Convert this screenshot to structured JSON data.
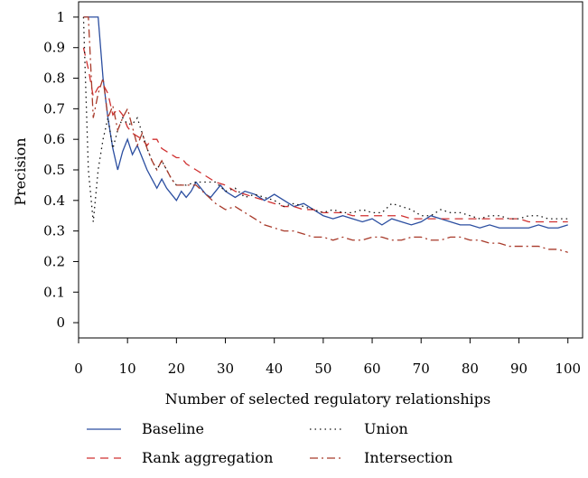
{
  "chart_data": {
    "type": "line",
    "xlabel": "Number of selected regulatory relationships",
    "ylabel": "Precision",
    "xlim": [
      0,
      103
    ],
    "ylim": [
      -0.05,
      1.05
    ],
    "xticks": [
      0,
      10,
      20,
      30,
      40,
      50,
      60,
      70,
      80,
      90,
      100
    ],
    "xtick_labels": [
      "0",
      "10",
      "20",
      "30",
      "40",
      "50",
      "60",
      "70",
      "80",
      "90",
      "100"
    ],
    "yticks": [
      0,
      0.1,
      0.2,
      0.3,
      0.4,
      0.5,
      0.6,
      0.7,
      0.8,
      0.9,
      1
    ],
    "ytick_labels": [
      "0",
      "0.1",
      "0.2",
      "0.3",
      "0.4",
      "0.5",
      "0.6",
      "0.7",
      "0.8",
      "0.9",
      "1"
    ],
    "grid": false,
    "legend_position": "bottom",
    "series": [
      {
        "name": "Baseline",
        "color": "#2b4ea0",
        "dash": "solid",
        "x": [
          1,
          2,
          3,
          4,
          5,
          6,
          7,
          8,
          9,
          10,
          11,
          12,
          13,
          14,
          15,
          16,
          17,
          18,
          19,
          20,
          21,
          22,
          23,
          24,
          25,
          26,
          27,
          28,
          29,
          30,
          32,
          34,
          36,
          38,
          40,
          42,
          44,
          46,
          48,
          50,
          52,
          54,
          56,
          58,
          60,
          62,
          64,
          66,
          68,
          70,
          72,
          74,
          76,
          78,
          80,
          82,
          84,
          86,
          88,
          90,
          92,
          94,
          96,
          98,
          100
        ],
        "y": [
          1.0,
          1.0,
          1.0,
          1.0,
          0.8,
          0.67,
          0.57,
          0.5,
          0.56,
          0.6,
          0.55,
          0.58,
          0.54,
          0.5,
          0.47,
          0.44,
          0.47,
          0.44,
          0.42,
          0.4,
          0.43,
          0.41,
          0.43,
          0.46,
          0.44,
          0.42,
          0.41,
          0.43,
          0.45,
          0.43,
          0.41,
          0.43,
          0.42,
          0.4,
          0.42,
          0.4,
          0.38,
          0.39,
          0.37,
          0.35,
          0.34,
          0.35,
          0.34,
          0.33,
          0.34,
          0.32,
          0.34,
          0.33,
          0.32,
          0.33,
          0.35,
          0.34,
          0.33,
          0.32,
          0.32,
          0.31,
          0.32,
          0.31,
          0.31,
          0.31,
          0.31,
          0.32,
          0.31,
          0.31,
          0.32
        ]
      },
      {
        "name": "Rank aggregation",
        "color": "#d03030",
        "dash": "dash",
        "x": [
          1,
          2,
          3,
          4,
          5,
          6,
          7,
          8,
          9,
          10,
          11,
          12,
          13,
          14,
          15,
          16,
          17,
          18,
          19,
          20,
          21,
          22,
          24,
          26,
          28,
          30,
          32,
          34,
          36,
          38,
          40,
          42,
          44,
          46,
          48,
          50,
          52,
          54,
          56,
          58,
          60,
          62,
          64,
          66,
          68,
          70,
          72,
          74,
          76,
          78,
          80,
          82,
          84,
          86,
          88,
          90,
          92,
          94,
          96,
          98,
          100
        ],
        "y": [
          0.9,
          0.83,
          0.74,
          0.77,
          0.78,
          0.75,
          0.68,
          0.7,
          0.68,
          0.64,
          0.62,
          0.61,
          0.6,
          0.58,
          0.6,
          0.6,
          0.57,
          0.56,
          0.55,
          0.54,
          0.54,
          0.52,
          0.5,
          0.48,
          0.46,
          0.45,
          0.43,
          0.42,
          0.41,
          0.4,
          0.39,
          0.38,
          0.38,
          0.37,
          0.37,
          0.36,
          0.36,
          0.36,
          0.35,
          0.35,
          0.35,
          0.35,
          0.35,
          0.35,
          0.34,
          0.34,
          0.34,
          0.34,
          0.34,
          0.34,
          0.34,
          0.34,
          0.34,
          0.34,
          0.34,
          0.34,
          0.33,
          0.33,
          0.33,
          0.33,
          0.33
        ]
      },
      {
        "name": "Union",
        "color": "#111111",
        "dash": "dot",
        "x": [
          1,
          2,
          3,
          4,
          5,
          6,
          7,
          8,
          9,
          10,
          11,
          12,
          13,
          14,
          15,
          16,
          17,
          18,
          19,
          20,
          22,
          24,
          26,
          28,
          30,
          32,
          34,
          36,
          38,
          40,
          42,
          44,
          46,
          48,
          50,
          52,
          54,
          56,
          58,
          60,
          62,
          64,
          66,
          68,
          70,
          72,
          74,
          76,
          78,
          80,
          82,
          84,
          86,
          88,
          90,
          92,
          94,
          96,
          98,
          100
        ],
        "y": [
          1.0,
          0.5,
          0.33,
          0.5,
          0.6,
          0.67,
          0.57,
          0.63,
          0.67,
          0.65,
          0.65,
          0.67,
          0.62,
          0.57,
          0.53,
          0.5,
          0.53,
          0.5,
          0.47,
          0.45,
          0.45,
          0.46,
          0.46,
          0.46,
          0.43,
          0.44,
          0.41,
          0.42,
          0.41,
          0.4,
          0.38,
          0.39,
          0.38,
          0.37,
          0.36,
          0.37,
          0.36,
          0.36,
          0.37,
          0.36,
          0.36,
          0.39,
          0.38,
          0.37,
          0.35,
          0.35,
          0.37,
          0.36,
          0.36,
          0.35,
          0.34,
          0.35,
          0.35,
          0.34,
          0.34,
          0.35,
          0.35,
          0.34,
          0.34,
          0.34
        ]
      },
      {
        "name": "Intersection",
        "color": "#a83a2a",
        "dash": "dashdot",
        "x": [
          1,
          2,
          3,
          4,
          5,
          6,
          7,
          8,
          9,
          10,
          11,
          12,
          13,
          14,
          15,
          16,
          17,
          18,
          19,
          20,
          22,
          24,
          26,
          28,
          30,
          32,
          34,
          36,
          38,
          40,
          42,
          44,
          46,
          48,
          50,
          52,
          54,
          56,
          58,
          60,
          62,
          64,
          66,
          68,
          70,
          72,
          74,
          76,
          78,
          80,
          82,
          84,
          86,
          88,
          90,
          92,
          94,
          96,
          98,
          100
        ],
        "y": [
          1.0,
          1.0,
          0.67,
          0.75,
          0.8,
          0.67,
          0.71,
          0.63,
          0.67,
          0.7,
          0.64,
          0.58,
          0.62,
          0.57,
          0.53,
          0.5,
          0.53,
          0.5,
          0.47,
          0.45,
          0.45,
          0.45,
          0.42,
          0.39,
          0.37,
          0.38,
          0.36,
          0.34,
          0.32,
          0.31,
          0.3,
          0.3,
          0.29,
          0.28,
          0.28,
          0.27,
          0.28,
          0.27,
          0.27,
          0.28,
          0.28,
          0.27,
          0.27,
          0.28,
          0.28,
          0.27,
          0.27,
          0.28,
          0.28,
          0.27,
          0.27,
          0.26,
          0.26,
          0.25,
          0.25,
          0.25,
          0.25,
          0.24,
          0.24,
          0.23
        ]
      }
    ]
  }
}
